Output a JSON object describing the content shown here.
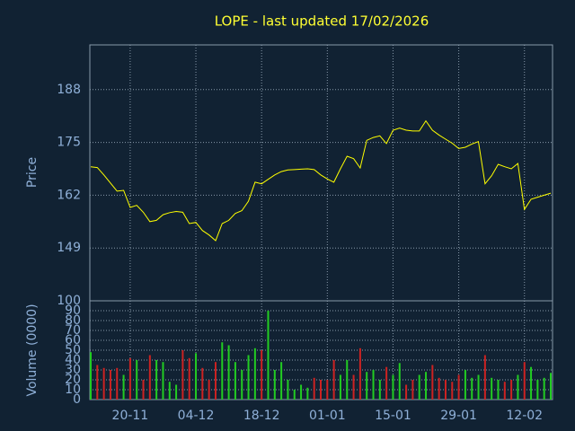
{
  "chart_data": [
    {
      "type": "line",
      "title": "LOPE - last updated 17/02/2026",
      "y_label": "Price",
      "color": "#ffff00",
      "grid": true,
      "categories": [
        null,
        null,
        null,
        null,
        null,
        null,
        "20-11",
        null,
        null,
        null,
        null,
        null,
        null,
        null,
        null,
        null,
        "04-12",
        null,
        null,
        null,
        null,
        null,
        null,
        null,
        null,
        null,
        "18-12",
        null,
        null,
        null,
        null,
        null,
        null,
        null,
        null,
        null,
        "01-01",
        null,
        null,
        null,
        null,
        null,
        null,
        null,
        null,
        null,
        "15-01",
        null,
        null,
        null,
        null,
        null,
        null,
        null,
        null,
        null,
        "29-01",
        null,
        null,
        null,
        null,
        null,
        null,
        null,
        null,
        null,
        "12-02",
        null,
        null,
        null,
        null
      ],
      "values": [
        169,
        168.8,
        167,
        165,
        163,
        163.2,
        159,
        159.5,
        157.8,
        155.5,
        155.8,
        157.2,
        157.7,
        158,
        157.8,
        155,
        155.3,
        153.3,
        152.2,
        150.8,
        155,
        155.8,
        157.5,
        158.2,
        160.5,
        165.2,
        164.8,
        165.9,
        167,
        167.8,
        168.2,
        168.3,
        168.4,
        168.5,
        168.3,
        167,
        166,
        165.2,
        168.5,
        171.6,
        171,
        168.7,
        175.5,
        176.2,
        176.6,
        174.7,
        178,
        178.5,
        178,
        177.8,
        177.8,
        180.3,
        178,
        176.8,
        175.8,
        174.8,
        173.5,
        173.8,
        174.6,
        175.2,
        164.8,
        166.8,
        169.6,
        169,
        168.5,
        169.8,
        158.5,
        161,
        161.5,
        162,
        162.5
      ],
      "ylim": [
        136,
        199
      ],
      "yticks": [
        149,
        162,
        175,
        188
      ]
    },
    {
      "type": "bar",
      "y_label": "Volume (0000)",
      "up_color": "#22cc22",
      "down_color": "#cc2222",
      "grid": true,
      "values": [
        48,
        35,
        32,
        30,
        32,
        25,
        42,
        40,
        20,
        45,
        40,
        38,
        18,
        15,
        50,
        42,
        47,
        32,
        20,
        38,
        58,
        55,
        38,
        30,
        45,
        52,
        50,
        90,
        30,
        38,
        20,
        10,
        15,
        12,
        22,
        20,
        20,
        40,
        25,
        40,
        25,
        52,
        28,
        30,
        20,
        33,
        25,
        37,
        15,
        20,
        25,
        28,
        35,
        22,
        20,
        18,
        25,
        30,
        22,
        25,
        45,
        22,
        20,
        18,
        20,
        25,
        38,
        33,
        20,
        22,
        27
      ],
      "ylim": [
        0,
        100
      ],
      "yticks": [
        0,
        10,
        20,
        30,
        40,
        50,
        60,
        70,
        80,
        90,
        100
      ]
    }
  ]
}
